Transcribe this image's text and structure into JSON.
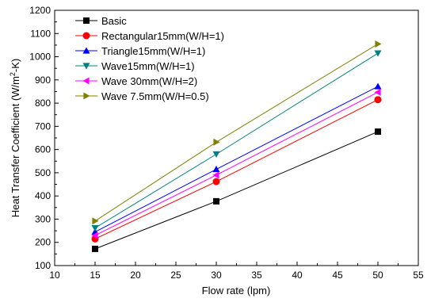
{
  "chart_data": {
    "type": "line",
    "title": "",
    "xlabel": "Flow rate (lpm)",
    "ylabel_prefix": "Heat Transfer Coefficient (W/m",
    "ylabel_sup": "2",
    "ylabel_suffix": "-K)",
    "xlim": [
      10,
      55
    ],
    "ylim": [
      100,
      1200
    ],
    "xticks": [
      10,
      15,
      20,
      25,
      30,
      35,
      40,
      45,
      50,
      55
    ],
    "yticks": [
      100,
      200,
      300,
      400,
      500,
      600,
      700,
      800,
      900,
      1000,
      1100,
      1200
    ],
    "grid": false,
    "legend_position": "top-left",
    "x": [
      15,
      30,
      50
    ],
    "series": [
      {
        "name": "Basic",
        "values": [
          172,
          377,
          677
        ],
        "color": "#000000",
        "marker": "square"
      },
      {
        "name": "Rectangular15mm(W/H=1)",
        "values": [
          215,
          462,
          815
        ],
        "color": "#ff0000",
        "marker": "circle"
      },
      {
        "name": "Triangle15mm(W/H=1)",
        "values": [
          245,
          515,
          872
        ],
        "color": "#0000ff",
        "marker": "triangle-up"
      },
      {
        "name": "Wave15mm(W/H=1)",
        "values": [
          262,
          580,
          1015
        ],
        "color": "#008080",
        "marker": "triangle-down"
      },
      {
        "name": "Wave 30mm(W/H=2)",
        "values": [
          230,
          490,
          847
        ],
        "color": "#ff00ff",
        "marker": "triangle-left"
      },
      {
        "name": "Wave 7.5mm(W/H=0.5)",
        "values": [
          292,
          632,
          1055
        ],
        "color": "#808000",
        "marker": "triangle-right"
      }
    ]
  }
}
